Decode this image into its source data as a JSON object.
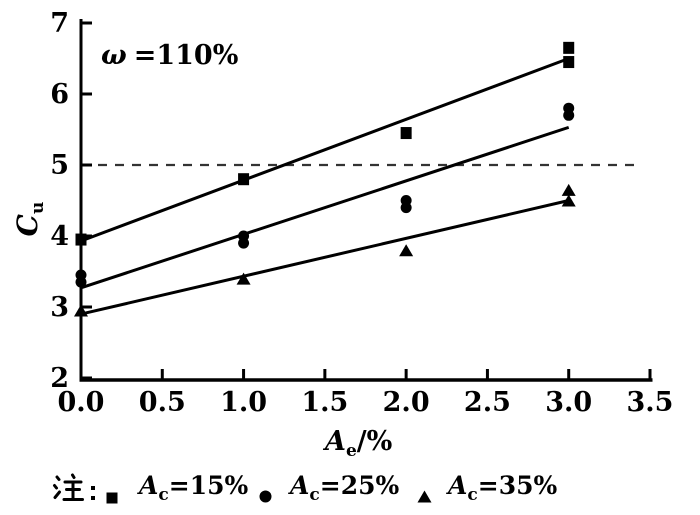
{
  "annotation": {
    "symbol": "ω",
    "text": "=110%"
  },
  "y_axis": {
    "label_main": "C",
    "label_sub": "u"
  },
  "x_axis": {
    "label_main": "A",
    "label_sub": "e",
    "label_suffix": "/%"
  },
  "legend": {
    "note_label": "注：",
    "entries": [
      {
        "marker": "square",
        "main": "A",
        "sub": "c",
        "value": "=15%"
      },
      {
        "marker": "circle",
        "main": "A",
        "sub": "c",
        "value": "=25%"
      },
      {
        "marker": "triangle",
        "main": "A",
        "sub": "c",
        "value": "=35%"
      }
    ]
  },
  "chart_data": {
    "type": "scatter",
    "title": "",
    "xlabel": "A_e/%",
    "ylabel": "C_u",
    "annotation": "ω =110%",
    "xlim": [
      0,
      3.5
    ],
    "ylim": [
      2,
      7
    ],
    "grid": false,
    "legend_position": "bottom",
    "x_tick_values": [
      0,
      0.5,
      1,
      1.5,
      2,
      2.5,
      3,
      3.5
    ],
    "x_tick_labels": [
      "0.0",
      "0.5",
      "1.0",
      "1.5",
      "2.0",
      "2.5",
      "3.0",
      "3.5"
    ],
    "y_tick_values": [
      2,
      3,
      4,
      5,
      6,
      7
    ],
    "y_tick_labels": [
      "2",
      "3",
      "4",
      "5",
      "6",
      "7"
    ],
    "reference_line": {
      "y": 5,
      "style": "dashed",
      "x_start": 0,
      "x_end": 3.44
    },
    "series": [
      {
        "name": "A_c=15%",
        "marker": "square",
        "points": [
          [
            0,
            3.95
          ],
          [
            1,
            4.8
          ],
          [
            2,
            5.45
          ],
          [
            3,
            6.45
          ],
          [
            3,
            6.65
          ]
        ],
        "trend_line": {
          "x1": 0,
          "y1": 3.93,
          "x2": 3,
          "y2": 6.5
        }
      },
      {
        "name": "A_c=25%",
        "marker": "circle",
        "points": [
          [
            0,
            3.35
          ],
          [
            0,
            3.45
          ],
          [
            1,
            3.9
          ],
          [
            1,
            4.0
          ],
          [
            2,
            4.4
          ],
          [
            2,
            4.5
          ],
          [
            3,
            5.7
          ],
          [
            3,
            5.8
          ]
        ],
        "trend_line": {
          "x1": 0,
          "y1": 3.27,
          "x2": 3,
          "y2": 5.53
        }
      },
      {
        "name": "A_c=35%",
        "marker": "triangle",
        "points": [
          [
            0,
            2.95
          ],
          [
            1,
            3.4
          ],
          [
            2,
            3.8
          ],
          [
            3,
            4.5
          ],
          [
            3,
            4.65
          ]
        ],
        "trend_line": {
          "x1": 0,
          "y1": 2.9,
          "x2": 3,
          "y2": 4.5
        }
      }
    ],
    "colors": {
      "foreground": "#000000",
      "background": "#ffffff",
      "dashed_line": "#333333"
    }
  }
}
